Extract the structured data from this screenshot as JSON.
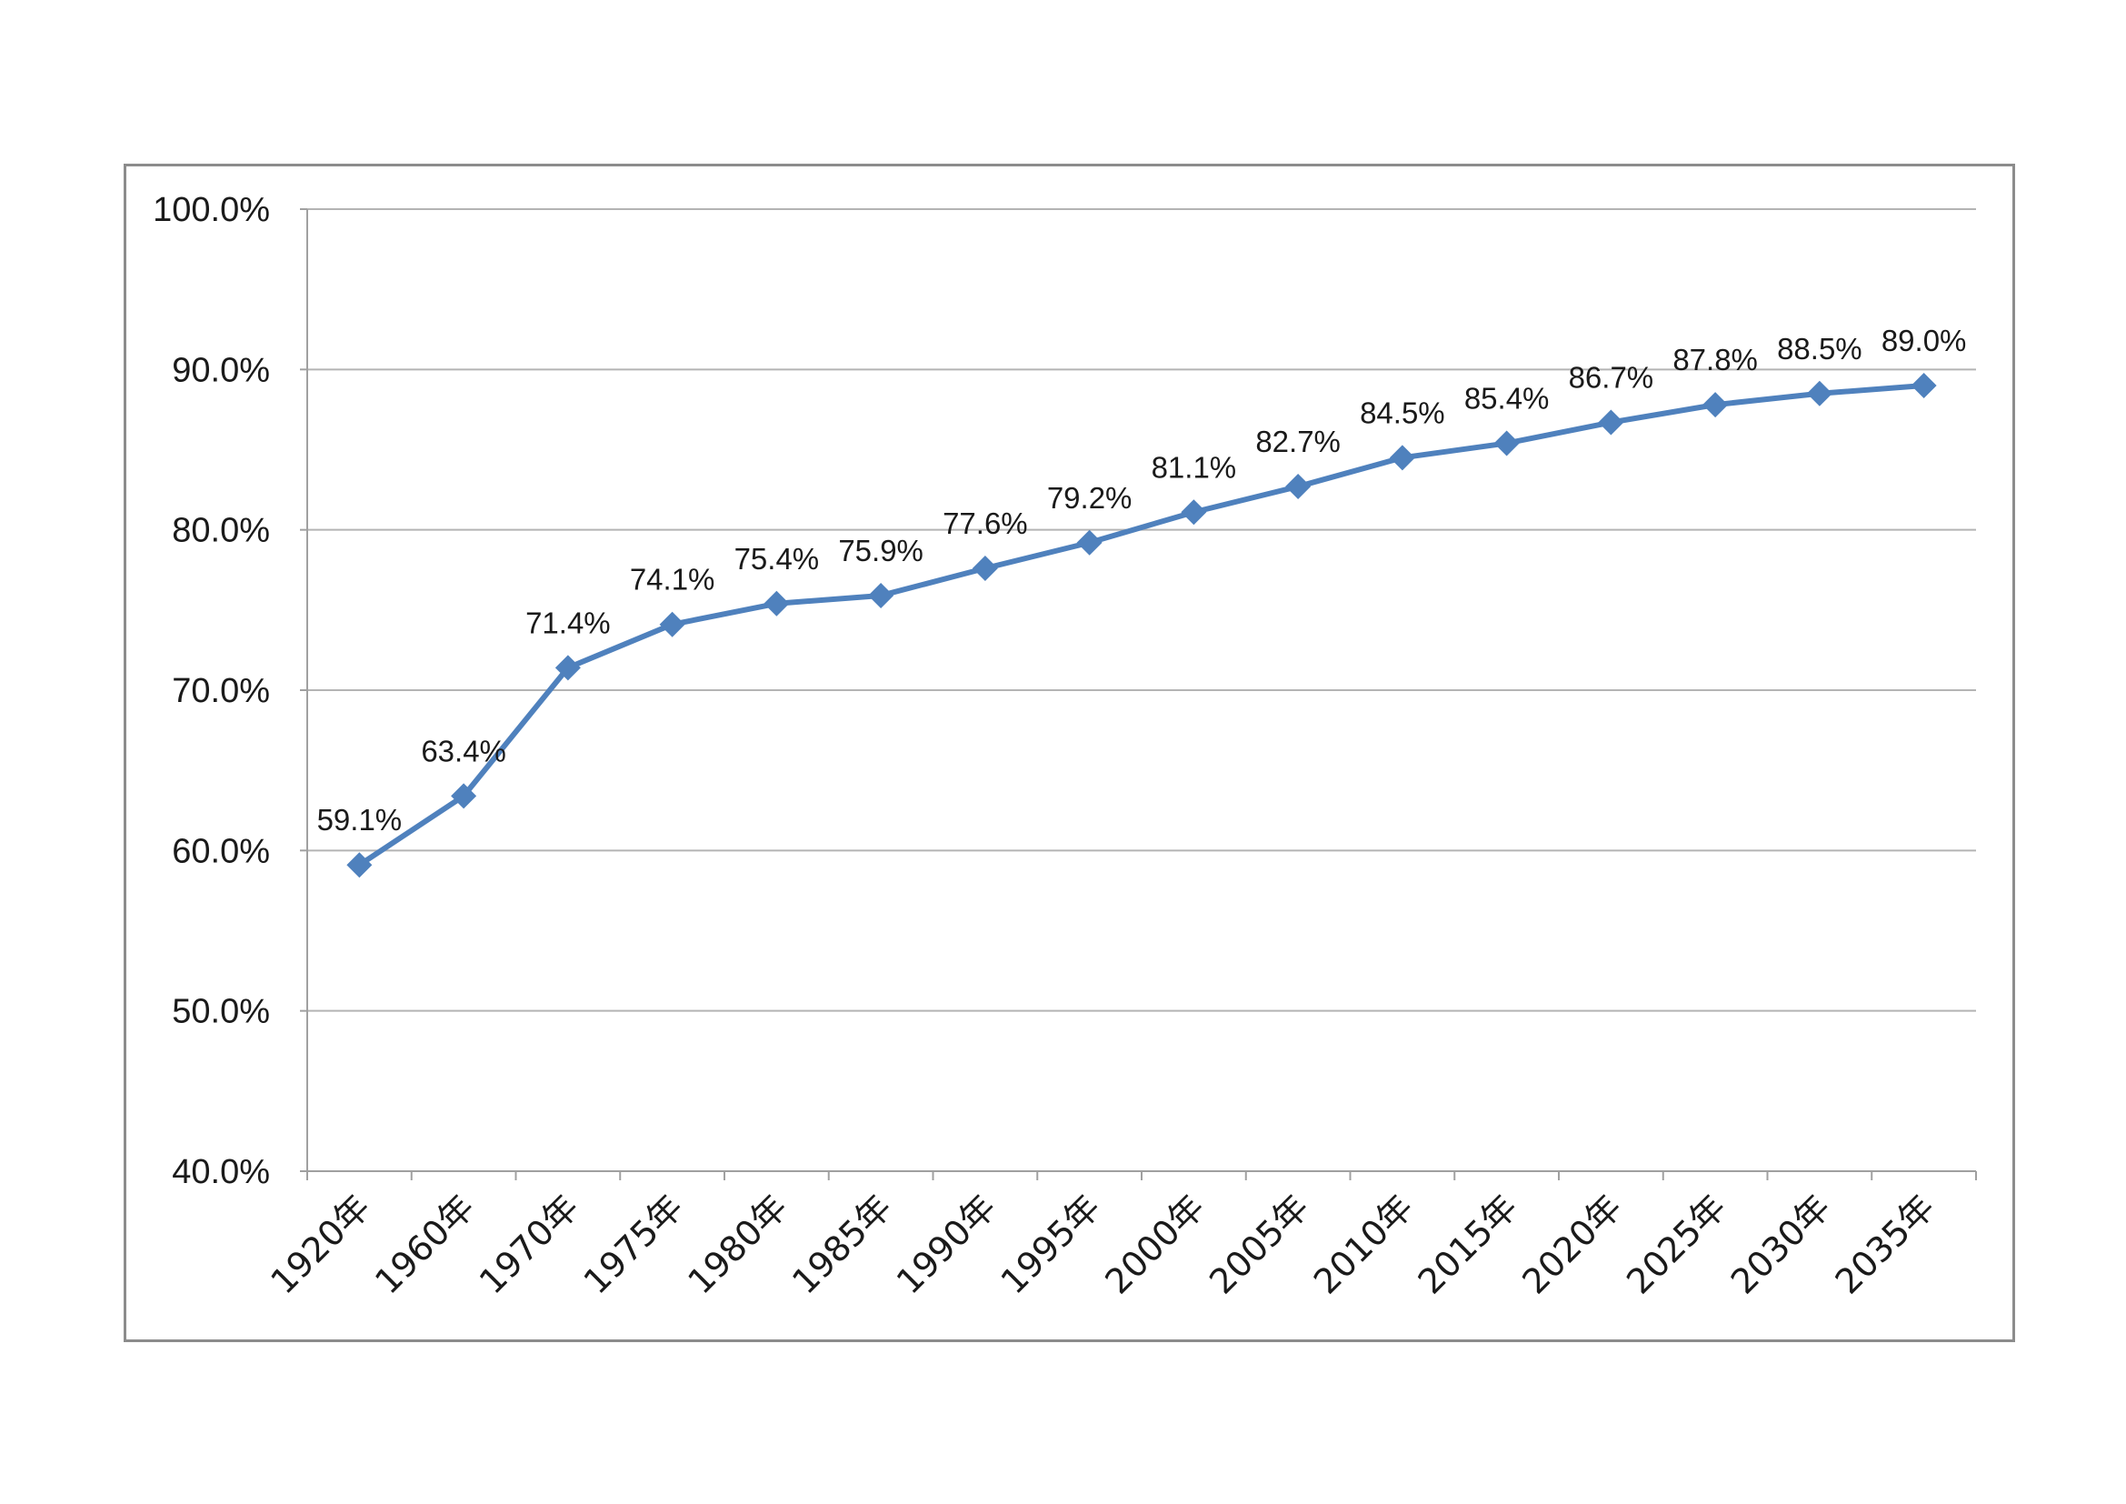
{
  "chart_data": {
    "type": "line",
    "title": "",
    "xlabel": "",
    "ylabel": "",
    "categories": [
      "1920年",
      "1960年",
      "1970年",
      "1975年",
      "1980年",
      "1985年",
      "1990年",
      "1995年",
      "2000年",
      "2005年",
      "2010年",
      "2015年",
      "2020年",
      "2025年",
      "2030年",
      "2035年"
    ],
    "series": [
      {
        "values": [
          59.1,
          63.4,
          71.4,
          74.1,
          75.4,
          75.9,
          77.6,
          79.2,
          81.1,
          82.7,
          84.5,
          85.4,
          86.7,
          87.8,
          88.5,
          89.0
        ],
        "data_labels": [
          "59.1%",
          "63.4%",
          "71.4%",
          "74.1%",
          "75.4%",
          "75.9%",
          "77.6%",
          "79.2%",
          "81.1%",
          "82.7%",
          "84.5%",
          "85.4%",
          "86.7%",
          "87.8%",
          "88.5%",
          "89.0%"
        ],
        "color": "#4f81bd",
        "marker": "diamond"
      }
    ],
    "ylim": [
      40,
      100
    ],
    "yticks": [
      40,
      50,
      60,
      70,
      80,
      90,
      100
    ],
    "ytick_labels": [
      "40.0%",
      "50.0%",
      "60.0%",
      "70.0%",
      "80.0%",
      "90.0%",
      "100.0%"
    ],
    "grid": true,
    "legend": "none",
    "colors": {
      "series": "#4f81bd",
      "grid": "#b4b4b4",
      "frame": "#8c8c8c"
    }
  }
}
